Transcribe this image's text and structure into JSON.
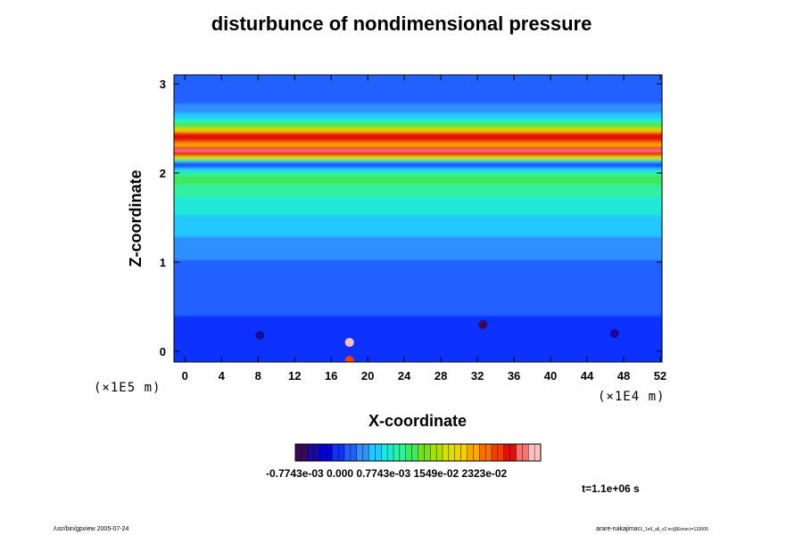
{
  "page": {
    "footer_left": "/usr/bin/gpview 2005-07-24",
    "footer_right_main": "arare-nakajima",
    "footer_right_small": "01_1e6_all_v2.nc@Exner,t=110000",
    "time_label": "t=1.1e+06 s"
  },
  "chart_data": {
    "type": "heatmap",
    "title": "disturbunce of nondimensional pressure",
    "xlabel": "X-coordinate",
    "ylabel": "Z-coordinate",
    "x_scale_note": "(×1E4 m)",
    "y_scale_note": "(×1E5 m)",
    "xlim": [
      -1.2,
      52.2
    ],
    "ylim": [
      -0.12,
      3.1
    ],
    "x_ticks": [
      0,
      4,
      8,
      12,
      16,
      20,
      24,
      28,
      32,
      36,
      40,
      44,
      48,
      52
    ],
    "x_tick_labels": [
      "0",
      "4",
      "8",
      "12",
      "16",
      "20",
      "24",
      "28",
      "32",
      "36",
      "40",
      "44",
      "48",
      "52"
    ],
    "y_ticks": [
      0,
      1,
      2,
      3
    ],
    "y_tick_labels": [
      "0",
      "1",
      "2",
      "3"
    ],
    "colorbar": {
      "labels_text": "-0.7743e-03 0.000 0.7743e-03 1549e-02 2323e-02",
      "tick_values": [
        "-0.7743e-03",
        "0.000",
        "0.7743e-03",
        "1549e-02",
        "2323e-02"
      ],
      "colors": [
        "#3a0a5a",
        "#1a0a9a",
        "#0000dd",
        "#1030ff",
        "#2060ff",
        "#2f90ff",
        "#22c8ff",
        "#20e8d8",
        "#30f0a0",
        "#40e860",
        "#70e020",
        "#a8e000",
        "#d8e000",
        "#f0d000",
        "#f8a800",
        "#f87000",
        "#f04000",
        "#e01010",
        "#ff7070",
        "#ffc0c0"
      ]
    },
    "field": {
      "background_level": 0.24,
      "z_profile": [
        [
          -0.12,
          0.14
        ],
        [
          0.0,
          0.15
        ],
        [
          0.2,
          0.17
        ],
        [
          0.5,
          0.19
        ],
        [
          0.8,
          0.21
        ],
        [
          1.0,
          0.23
        ],
        [
          1.2,
          0.27
        ],
        [
          1.4,
          0.31
        ],
        [
          1.6,
          0.36
        ],
        [
          1.75,
          0.4
        ],
        [
          1.85,
          0.44
        ],
        [
          1.95,
          0.47
        ],
        [
          2.02,
          0.4
        ],
        [
          2.08,
          0.18
        ],
        [
          2.12,
          0.22
        ],
        [
          2.17,
          0.6
        ],
        [
          2.2,
          0.82
        ],
        [
          2.23,
          0.93
        ],
        [
          2.255,
          0.99
        ],
        [
          2.285,
          0.9
        ],
        [
          2.31,
          0.72
        ],
        [
          2.34,
          0.77
        ],
        [
          2.37,
          0.85
        ],
        [
          2.41,
          0.92
        ],
        [
          2.44,
          0.86
        ],
        [
          2.48,
          0.7
        ],
        [
          2.52,
          0.55
        ],
        [
          2.56,
          0.45
        ],
        [
          2.62,
          0.34
        ],
        [
          2.7,
          0.26
        ],
        [
          2.85,
          0.22
        ],
        [
          3.1,
          0.21
        ]
      ],
      "features": [
        {
          "x": 8.2,
          "z": 0.18,
          "level": 0.05
        },
        {
          "x": 18.0,
          "z": 0.1,
          "level": 1.0
        },
        {
          "x": 18.0,
          "z": -0.1,
          "level": 0.85
        },
        {
          "x": 32.6,
          "z": 0.3,
          "level": 0.0
        },
        {
          "x": 47.0,
          "z": 0.2,
          "level": 0.07
        }
      ]
    }
  }
}
